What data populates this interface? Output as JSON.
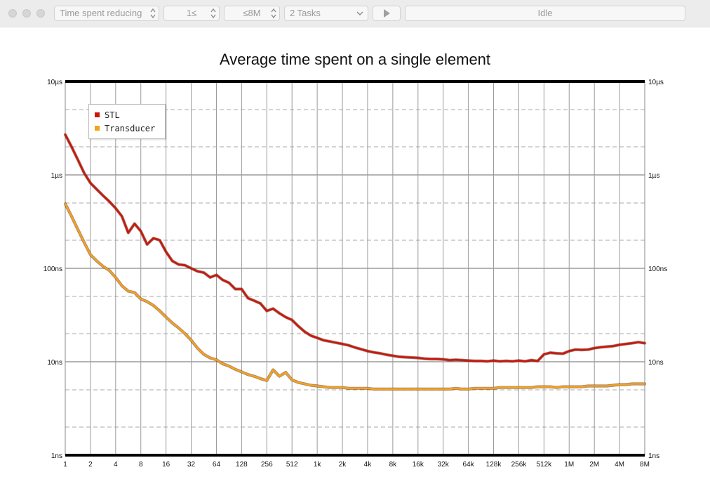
{
  "toolbar": {
    "metric_select": "Time spent reducing",
    "min_size_select": "1≤",
    "max_size_select": "≤8M",
    "tasks_select": "2 Tasks",
    "status": "Idle"
  },
  "colors": {
    "stl": "#c8180c",
    "transducer": "#f2a31c"
  },
  "chart_data": {
    "type": "line",
    "title": "Average time spent on a single element",
    "x_scale": "log2",
    "y_scale": "log10",
    "x_tick_labels": [
      "1",
      "2",
      "4",
      "8",
      "16",
      "32",
      "64",
      "128",
      "256",
      "512",
      "1k",
      "2k",
      "4k",
      "8k",
      "16k",
      "32k",
      "64k",
      "128k",
      "256k",
      "512k",
      "1M",
      "2M",
      "4M",
      "8M"
    ],
    "y_tick_labels": [
      "1ns",
      "10ns",
      "100ns",
      "1µs",
      "10µs"
    ],
    "ylim_ns": [
      1,
      10000
    ],
    "xlim_log2": [
      0,
      23
    ],
    "grid": true,
    "legend_position": "top-left",
    "series": [
      {
        "name": "STL",
        "color_key": "stl",
        "points_log2x_ns": [
          [
            0,
            2700
          ],
          [
            0.25,
            2000
          ],
          [
            0.5,
            1450
          ],
          [
            0.75,
            1050
          ],
          [
            1,
            820
          ],
          [
            1.25,
            700
          ],
          [
            1.5,
            600
          ],
          [
            1.75,
            520
          ],
          [
            2,
            440
          ],
          [
            2.25,
            360
          ],
          [
            2.5,
            240
          ],
          [
            2.75,
            300
          ],
          [
            3,
            250
          ],
          [
            3.25,
            180
          ],
          [
            3.5,
            210
          ],
          [
            3.75,
            200
          ],
          [
            4,
            150
          ],
          [
            4.25,
            120
          ],
          [
            4.5,
            110
          ],
          [
            4.75,
            108
          ],
          [
            5,
            100
          ],
          [
            5.25,
            93
          ],
          [
            5.5,
            90
          ],
          [
            5.75,
            80
          ],
          [
            6,
            85
          ],
          [
            6.25,
            75
          ],
          [
            6.5,
            70
          ],
          [
            6.75,
            60
          ],
          [
            7,
            60
          ],
          [
            7.25,
            48
          ],
          [
            7.5,
            45
          ],
          [
            7.75,
            42
          ],
          [
            8,
            35
          ],
          [
            8.25,
            37
          ],
          [
            8.5,
            33
          ],
          [
            8.75,
            30
          ],
          [
            9,
            28
          ],
          [
            9.25,
            24
          ],
          [
            9.5,
            21
          ],
          [
            9.75,
            19
          ],
          [
            10,
            18
          ],
          [
            10.25,
            17
          ],
          [
            10.5,
            16.5
          ],
          [
            10.75,
            16
          ],
          [
            11,
            15.5
          ],
          [
            11.25,
            15
          ],
          [
            11.5,
            14.2
          ],
          [
            11.75,
            13.6
          ],
          [
            12,
            13
          ],
          [
            12.25,
            12.6
          ],
          [
            12.5,
            12.3
          ],
          [
            12.75,
            11.9
          ],
          [
            13,
            11.6
          ],
          [
            13.25,
            11.3
          ],
          [
            13.5,
            11.2
          ],
          [
            13.75,
            11.1
          ],
          [
            14,
            11
          ],
          [
            14.25,
            10.8
          ],
          [
            14.5,
            10.7
          ],
          [
            14.75,
            10.7
          ],
          [
            15,
            10.6
          ],
          [
            15.25,
            10.4
          ],
          [
            15.5,
            10.5
          ],
          [
            15.75,
            10.4
          ],
          [
            16,
            10.3
          ],
          [
            16.25,
            10.2
          ],
          [
            16.5,
            10.2
          ],
          [
            16.75,
            10.1
          ],
          [
            17,
            10.3
          ],
          [
            17.25,
            10.1
          ],
          [
            17.5,
            10.2
          ],
          [
            17.75,
            10.1
          ],
          [
            18,
            10.3
          ],
          [
            18.25,
            10.1
          ],
          [
            18.5,
            10.4
          ],
          [
            18.75,
            10.2
          ],
          [
            19,
            12
          ],
          [
            19.25,
            12.5
          ],
          [
            19.5,
            12.3
          ],
          [
            19.75,
            12.2
          ],
          [
            20,
            13
          ],
          [
            20.25,
            13.5
          ],
          [
            20.5,
            13.4
          ],
          [
            20.75,
            13.5
          ],
          [
            21,
            14
          ],
          [
            21.25,
            14.3
          ],
          [
            21.5,
            14.5
          ],
          [
            21.75,
            14.7
          ],
          [
            22,
            15.2
          ],
          [
            22.25,
            15.5
          ],
          [
            22.5,
            15.8
          ],
          [
            22.75,
            16.2
          ],
          [
            23,
            15.8
          ]
        ]
      },
      {
        "name": "Transducer",
        "color_key": "transducer",
        "points_log2x_ns": [
          [
            0,
            490
          ],
          [
            0.25,
            360
          ],
          [
            0.5,
            260
          ],
          [
            0.75,
            190
          ],
          [
            1,
            140
          ],
          [
            1.25,
            120
          ],
          [
            1.5,
            105
          ],
          [
            1.75,
            95
          ],
          [
            2,
            80
          ],
          [
            2.25,
            65
          ],
          [
            2.5,
            57
          ],
          [
            2.75,
            55
          ],
          [
            3,
            47
          ],
          [
            3.25,
            44
          ],
          [
            3.5,
            40
          ],
          [
            3.75,
            35
          ],
          [
            4,
            30
          ],
          [
            4.25,
            26
          ],
          [
            4.5,
            23
          ],
          [
            4.75,
            20
          ],
          [
            5,
            17
          ],
          [
            5.25,
            14
          ],
          [
            5.5,
            12
          ],
          [
            5.75,
            11
          ],
          [
            6,
            10.5
          ],
          [
            6.25,
            9.5
          ],
          [
            6.5,
            9
          ],
          [
            6.75,
            8.3
          ],
          [
            7,
            7.8
          ],
          [
            7.25,
            7.3
          ],
          [
            7.5,
            7
          ],
          [
            7.75,
            6.6
          ],
          [
            8,
            6.3
          ],
          [
            8.25,
            8.2
          ],
          [
            8.5,
            7
          ],
          [
            8.75,
            7.7
          ],
          [
            9,
            6.4
          ],
          [
            9.25,
            6
          ],
          [
            9.5,
            5.8
          ],
          [
            9.75,
            5.6
          ],
          [
            10,
            5.5
          ],
          [
            10.25,
            5.4
          ],
          [
            10.5,
            5.3
          ],
          [
            10.75,
            5.3
          ],
          [
            11,
            5.3
          ],
          [
            11.25,
            5.2
          ],
          [
            11.5,
            5.2
          ],
          [
            11.75,
            5.2
          ],
          [
            12,
            5.2
          ],
          [
            12.25,
            5.1
          ],
          [
            12.5,
            5.1
          ],
          [
            12.75,
            5.1
          ],
          [
            13,
            5.1
          ],
          [
            13.25,
            5.1
          ],
          [
            13.5,
            5.1
          ],
          [
            13.75,
            5.1
          ],
          [
            14,
            5.1
          ],
          [
            14.25,
            5.1
          ],
          [
            14.5,
            5.1
          ],
          [
            14.75,
            5.1
          ],
          [
            15,
            5.1
          ],
          [
            15.25,
            5.1
          ],
          [
            15.5,
            5.2
          ],
          [
            15.75,
            5.1
          ],
          [
            16,
            5.1
          ],
          [
            16.25,
            5.2
          ],
          [
            16.5,
            5.2
          ],
          [
            16.75,
            5.2
          ],
          [
            17,
            5.2
          ],
          [
            17.25,
            5.3
          ],
          [
            17.5,
            5.3
          ],
          [
            17.75,
            5.3
          ],
          [
            18,
            5.3
          ],
          [
            18.25,
            5.3
          ],
          [
            18.5,
            5.3
          ],
          [
            18.75,
            5.4
          ],
          [
            19,
            5.4
          ],
          [
            19.25,
            5.4
          ],
          [
            19.5,
            5.3
          ],
          [
            19.75,
            5.4
          ],
          [
            20,
            5.4
          ],
          [
            20.25,
            5.4
          ],
          [
            20.5,
            5.4
          ],
          [
            20.75,
            5.5
          ],
          [
            21,
            5.5
          ],
          [
            21.25,
            5.5
          ],
          [
            21.5,
            5.5
          ],
          [
            21.75,
            5.6
          ],
          [
            22,
            5.7
          ],
          [
            22.25,
            5.7
          ],
          [
            22.5,
            5.8
          ],
          [
            22.75,
            5.8
          ],
          [
            23,
            5.8
          ]
        ]
      }
    ]
  }
}
